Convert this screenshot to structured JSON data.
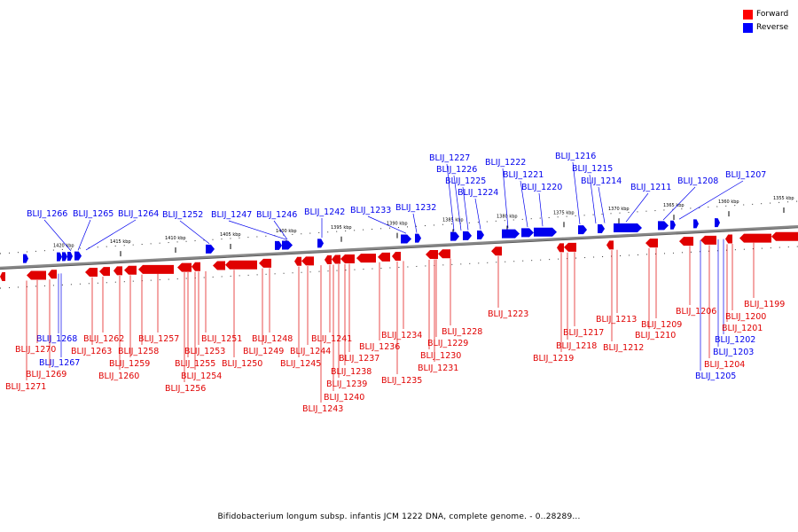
{
  "legend": [
    {
      "label": "Forward",
      "color": "#ff0000"
    },
    {
      "label": "Reverse",
      "color": "#0000ff"
    }
  ],
  "colors": {
    "forward": "#e00000",
    "reverse": "#0000ee",
    "axis": "#888888"
  },
  "caption": "Bifidobacterium longum subsp. infantis JCM 1222 DNA, complete genome. - 0..28289...",
  "kbp_ticks": [
    "1420 kbp",
    "1415 kbp",
    "1410 kbp",
    "1405 kbp",
    "1400 kbp",
    "1395 kbp",
    "1390 kbp",
    "1385 kbp",
    "1380 kbp",
    "1375 kbp",
    "1370 kbp",
    "1365 kbp",
    "1360 kbp",
    "1355 kbp"
  ],
  "reverse_genes": [
    "BLIJ_1266",
    "BLIJ_1265",
    "BLIJ_1264",
    "BLIJ_1252",
    "BLIJ_1247",
    "BLIJ_1246",
    "BLIJ_1242",
    "BLIJ_1233",
    "BLIJ_1232",
    "BLIJ_1227",
    "BLIJ_1226",
    "BLIJ_1225",
    "BLIJ_1224",
    "BLIJ_1222",
    "BLIJ_1221",
    "BLIJ_1220",
    "BLIJ_1216",
    "BLIJ_1215",
    "BLIJ_1214",
    "BLIJ_1211",
    "BLIJ_1208",
    "BLIJ_1207",
    "BLIJ_1268",
    "BLIJ_1267",
    "BLIJ_1205",
    "BLIJ_1203",
    "BLIJ_1202"
  ],
  "forward_genes": [
    "BLIJ_1270",
    "BLIJ_1269",
    "BLIJ_1271",
    "BLIJ_1262",
    "BLIJ_1263",
    "BLIJ_1260",
    "BLIJ_1259",
    "BLIJ_1258",
    "BLIJ_1257",
    "BLIJ_1256",
    "BLIJ_1255",
    "BLIJ_1254",
    "BLIJ_1253",
    "BLIJ_1251",
    "BLIJ_1250",
    "BLIJ_1249",
    "BLIJ_1248",
    "BLIJ_1245",
    "BLIJ_1244",
    "BLIJ_1243",
    "BLIJ_1241",
    "BLIJ_1240",
    "BLIJ_1239",
    "BLIJ_1238",
    "BLIJ_1237",
    "BLIJ_1236",
    "BLIJ_1235",
    "BLIJ_1234",
    "BLIJ_1231",
    "BLIJ_1230",
    "BLIJ_1229",
    "BLIJ_1228",
    "BLIJ_1223",
    "BLIJ_1219",
    "BLIJ_1218",
    "BLIJ_1217",
    "BLIJ_1213",
    "BLIJ_1212",
    "BLIJ_1210",
    "BLIJ_1209",
    "BLIJ_1206",
    "BLIJ_1204",
    "BLIJ_1201",
    "BLIJ_1200",
    "BLIJ_1199"
  ]
}
